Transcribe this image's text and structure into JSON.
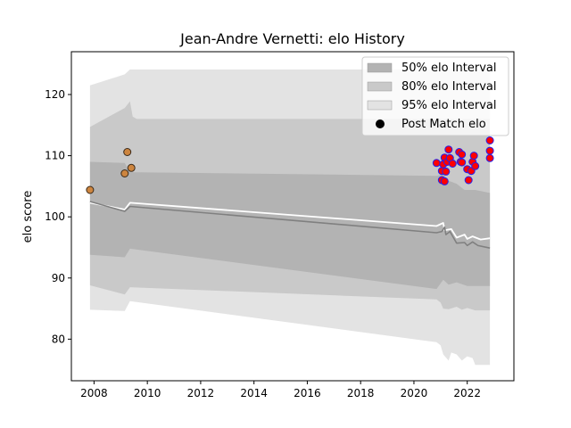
{
  "chart_data": {
    "type": "line",
    "title": "Jean-Andre Vernetti: elo History",
    "xlabel": "",
    "ylabel": "elo score",
    "xlim": [
      2007.15,
      2023.75
    ],
    "ylim": [
      73.2,
      127.0
    ],
    "x_ticks": [
      2008,
      2010,
      2012,
      2014,
      2016,
      2018,
      2020,
      2022
    ],
    "x_tick_labels": [
      "2008",
      "2010",
      "2012",
      "2014",
      "2016",
      "2018",
      "2020",
      "2022"
    ],
    "y_ticks": [
      80,
      90,
      100,
      110,
      120
    ],
    "y_tick_labels": [
      "80",
      "90",
      "100",
      "110",
      "120"
    ],
    "grid": false,
    "legend_position": "top-right",
    "legend": [
      {
        "label": "50% elo Interval",
        "kind": "patch",
        "color": "#b3b3b3"
      },
      {
        "label": "80% elo Interval",
        "kind": "patch",
        "color": "#c9c9c9"
      },
      {
        "label": "95% elo Interval",
        "kind": "patch",
        "color": "#e3e3e3"
      },
      {
        "label": "Post Match elo",
        "kind": "marker",
        "color": "#000000"
      }
    ],
    "bands": [
      {
        "name": "95% elo Interval",
        "color": "#e3e3e3",
        "upper": [
          [
            2007.85,
            121.5
          ],
          [
            2009.15,
            123.3
          ],
          [
            2009.35,
            124.1
          ],
          [
            2022.85,
            124.1
          ]
        ],
        "lower": [
          [
            2007.85,
            84.8
          ],
          [
            2009.15,
            84.6
          ],
          [
            2009.35,
            86.2
          ],
          [
            2020.85,
            79.5
          ],
          [
            2021.0,
            79.0
          ],
          [
            2021.1,
            77.5
          ],
          [
            2021.3,
            76.5
          ],
          [
            2021.4,
            77.8
          ],
          [
            2021.6,
            77.5
          ],
          [
            2021.8,
            76.5
          ],
          [
            2022.0,
            77.2
          ],
          [
            2022.2,
            76.9
          ],
          [
            2022.3,
            75.8
          ],
          [
            2022.85,
            75.8
          ]
        ]
      },
      {
        "name": "80% elo Interval",
        "color": "#c9c9c9",
        "upper": [
          [
            2007.85,
            114.7
          ],
          [
            2009.15,
            117.8
          ],
          [
            2009.35,
            118.9
          ],
          [
            2009.45,
            116.4
          ],
          [
            2009.6,
            116.0
          ],
          [
            2022.85,
            116.0
          ]
        ],
        "lower": [
          [
            2007.85,
            88.8
          ],
          [
            2009.15,
            87.3
          ],
          [
            2009.35,
            88.5
          ],
          [
            2020.85,
            86.5
          ],
          [
            2021.0,
            86.0
          ],
          [
            2021.1,
            85.0
          ],
          [
            2021.3,
            84.9
          ],
          [
            2021.6,
            85.3
          ],
          [
            2021.8,
            84.8
          ],
          [
            2022.0,
            85.1
          ],
          [
            2022.3,
            84.7
          ],
          [
            2022.85,
            84.7
          ]
        ]
      },
      {
        "name": "50% elo Interval",
        "color": "#b3b3b3",
        "upper": [
          [
            2007.85,
            109.0
          ],
          [
            2009.15,
            108.8
          ],
          [
            2009.35,
            107.3
          ],
          [
            2020.85,
            106.7
          ],
          [
            2021.1,
            107.0
          ],
          [
            2021.3,
            105.9
          ],
          [
            2021.6,
            105.4
          ],
          [
            2021.9,
            104.4
          ],
          [
            2022.3,
            104.4
          ],
          [
            2022.85,
            103.9
          ]
        ],
        "lower": [
          [
            2007.85,
            93.8
          ],
          [
            2009.15,
            93.4
          ],
          [
            2009.35,
            94.8
          ],
          [
            2020.85,
            88.2
          ],
          [
            2021.1,
            89.7
          ],
          [
            2021.3,
            88.9
          ],
          [
            2021.6,
            89.3
          ],
          [
            2022.0,
            88.7
          ],
          [
            2022.3,
            88.7
          ],
          [
            2022.85,
            88.7
          ]
        ]
      }
    ],
    "series": [
      {
        "color": "#ffffff",
        "width": 1.8,
        "points": [
          [
            2007.85,
            102.3
          ],
          [
            2009.15,
            101.2
          ],
          [
            2009.35,
            102.3
          ],
          [
            2020.85,
            98.5
          ],
          [
            2021.1,
            99.0
          ],
          [
            2021.15,
            97.8
          ],
          [
            2021.4,
            98.0
          ],
          [
            2021.6,
            96.6
          ],
          [
            2021.9,
            97.1
          ],
          [
            2022.0,
            96.4
          ],
          [
            2022.2,
            96.8
          ],
          [
            2022.5,
            96.3
          ],
          [
            2022.85,
            96.5
          ]
        ]
      },
      {
        "color": "#808080",
        "width": 1.6,
        "points": [
          [
            2007.85,
            102.5
          ],
          [
            2009.15,
            100.9
          ],
          [
            2009.35,
            101.7
          ],
          [
            2020.85,
            97.4
          ],
          [
            2021.05,
            97.6
          ],
          [
            2021.15,
            98.3
          ],
          [
            2021.2,
            97.1
          ],
          [
            2021.35,
            97.6
          ],
          [
            2021.6,
            95.7
          ],
          [
            2021.9,
            95.8
          ],
          [
            2022.0,
            95.3
          ],
          [
            2022.2,
            95.9
          ],
          [
            2022.4,
            95.3
          ],
          [
            2022.85,
            94.9
          ]
        ]
      }
    ],
    "points_early": {
      "name": "Post Match elo",
      "face": "#cd853f",
      "edge": "#3a2a1a",
      "points": [
        [
          2007.85,
          104.4
        ],
        [
          2009.15,
          107.1
        ],
        [
          2009.25,
          110.6
        ],
        [
          2009.4,
          108.0
        ]
      ]
    },
    "points_recent": {
      "face": "#ff0000",
      "edge": "#2222ee",
      "points": [
        [
          2020.85,
          108.8
        ],
        [
          2021.05,
          107.5
        ],
        [
          2021.05,
          106.0
        ],
        [
          2021.1,
          108.6
        ],
        [
          2021.15,
          109.7
        ],
        [
          2021.15,
          105.8
        ],
        [
          2021.2,
          107.4
        ],
        [
          2021.25,
          109.0
        ],
        [
          2021.3,
          111.0
        ],
        [
          2021.35,
          109.6
        ],
        [
          2021.45,
          108.7
        ],
        [
          2021.7,
          110.6
        ],
        [
          2021.75,
          109.0
        ],
        [
          2021.8,
          110.2
        ],
        [
          2021.8,
          108.9
        ],
        [
          2022.0,
          107.8
        ],
        [
          2022.05,
          106.0
        ],
        [
          2022.15,
          107.5
        ],
        [
          2022.2,
          109.0
        ],
        [
          2022.25,
          110.0
        ],
        [
          2022.3,
          108.3
        ],
        [
          2022.85,
          112.5
        ],
        [
          2022.85,
          110.8
        ],
        [
          2022.85,
          109.6
        ]
      ]
    }
  }
}
